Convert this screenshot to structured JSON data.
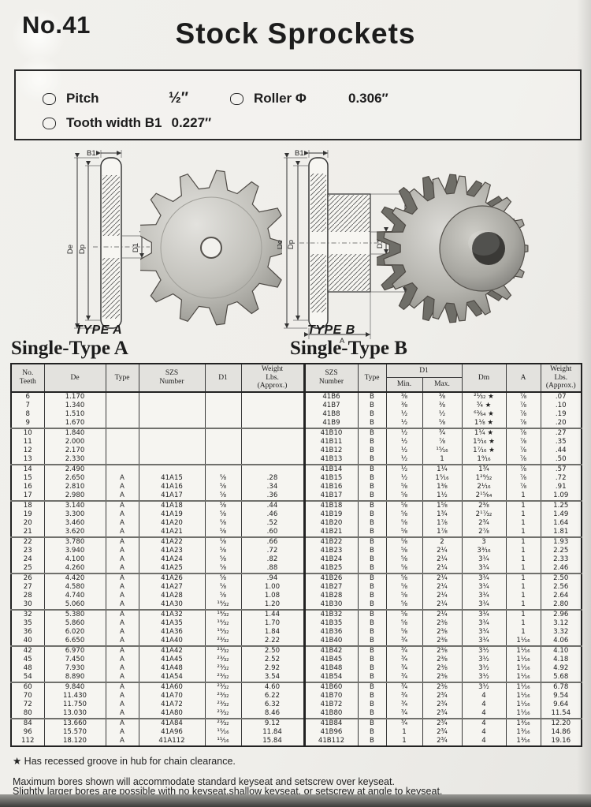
{
  "page": {
    "number_label": "No.41",
    "title": "Stock Sprockets"
  },
  "specs": {
    "pitch_label": "Pitch",
    "pitch_value": "½″",
    "roller_label": "Roller Φ",
    "roller_value": "0.306″",
    "tooth_label": "Tooth width B1",
    "tooth_value": "0.227″"
  },
  "drawings": {
    "type_a_caption": "TYPE A",
    "type_b_caption": "TYPE B",
    "single_a_title": "Single-Type A",
    "single_b_title": "Single-Type B",
    "labels": {
      "b1": "B1",
      "de": "De",
      "dp": "Dp",
      "d1": "D1",
      "dm": "Dm",
      "a": "A"
    }
  },
  "table": {
    "headers": {
      "no_teeth": "No.\nTeeth",
      "de": "De",
      "type": "Type",
      "szs_number": "SZS\nNumber",
      "d1": "D1",
      "weight": "Weight\nLbs.\n(Approx.)",
      "szs_number_b": "SZS\nNumber",
      "type_b": "Type",
      "d1_b": "D1",
      "min": "Min.",
      "max": "Max.",
      "dm": "Dm",
      "a": "A",
      "weight_b": "Weight\nLbs.\n(Approx.)"
    },
    "rows": [
      {
        "c": [
          "6",
          "1.170",
          "",
          "",
          "",
          "",
          "41B6",
          "B",
          "⅜",
          "⅜",
          "²¹⁄₃₂ ★",
          "⅞",
          ".07"
        ],
        "sep": false
      },
      {
        "c": [
          "7",
          "1.340",
          "",
          "",
          "",
          "",
          "41B7",
          "B",
          "⅜",
          "⅜",
          "¾ ★",
          "⅞",
          ".10"
        ],
        "sep": false
      },
      {
        "c": [
          "8",
          "1.510",
          "",
          "",
          "",
          "",
          "41B8",
          "B",
          "½",
          "½",
          "⁶³⁄₆₄ ★",
          "⅞",
          ".19"
        ],
        "sep": false
      },
      {
        "c": [
          "9",
          "1.670",
          "",
          "",
          "",
          "",
          "41B9",
          "B",
          "½",
          "⅝",
          "1⅛ ★",
          "⅞",
          ".20"
        ],
        "sep": false
      },
      {
        "c": [
          "10",
          "1.840",
          "",
          "",
          "",
          "",
          "41B10",
          "B",
          "½",
          "¾",
          "1¼ ★",
          "⅞",
          ".27"
        ],
        "sep": true
      },
      {
        "c": [
          "11",
          "2.000",
          "",
          "",
          "",
          "",
          "41B11",
          "B",
          "½",
          "⅞",
          "1⁵⁄₁₆ ★",
          "⅞",
          ".35"
        ],
        "sep": false
      },
      {
        "c": [
          "12",
          "2.170",
          "",
          "",
          "",
          "",
          "41B12",
          "B",
          "½",
          "¹⁵⁄₁₆",
          "1⁷⁄₁₆ ★",
          "⅞",
          ".44"
        ],
        "sep": false
      },
      {
        "c": [
          "13",
          "2.330",
          "",
          "",
          "",
          "",
          "41B13",
          "B",
          "½",
          "1",
          "1⁹⁄₁₆",
          "⅞",
          ".50"
        ],
        "sep": false
      },
      {
        "c": [
          "14",
          "2.490",
          "",
          "",
          "",
          "",
          "41B14",
          "B",
          "½",
          "1¼",
          "1¾",
          "⅞",
          ".57"
        ],
        "sep": true
      },
      {
        "c": [
          "15",
          "2.650",
          "A",
          "41A15",
          "⅝",
          ".28",
          "41B15",
          "B",
          "½",
          "1⁵⁄₁₆",
          "1²⁹⁄₃₂",
          "⅞",
          ".72"
        ],
        "sep": false
      },
      {
        "c": [
          "16",
          "2.810",
          "A",
          "41A16",
          "⅝",
          ".34",
          "41B16",
          "B",
          "⅝",
          "1⅜",
          "2¹⁄₁₆",
          "⅞",
          ".91"
        ],
        "sep": false
      },
      {
        "c": [
          "17",
          "2.980",
          "A",
          "41A17",
          "⅝",
          ".36",
          "41B17",
          "B",
          "⅝",
          "1½",
          "2¹⁵⁄₆₄",
          "1",
          "1.09"
        ],
        "sep": false
      },
      {
        "c": [
          "18",
          "3.140",
          "A",
          "41A18",
          "⅝",
          ".44",
          "41B18",
          "B",
          "⅝",
          "1⅝",
          "2⅜",
          "1",
          "1.25"
        ],
        "sep": true
      },
      {
        "c": [
          "19",
          "3.300",
          "A",
          "41A19",
          "⅝",
          ".46",
          "41B19",
          "B",
          "⅝",
          "1¾",
          "2¹⁷⁄₃₂",
          "1",
          "1.49"
        ],
        "sep": false
      },
      {
        "c": [
          "20",
          "3.460",
          "A",
          "41A20",
          "⅝",
          ".52",
          "41B20",
          "B",
          "⅝",
          "1⅞",
          "2¾",
          "1",
          "1.64"
        ],
        "sep": false
      },
      {
        "c": [
          "21",
          "3.620",
          "A",
          "41A21",
          "⅝",
          ".60",
          "41B21",
          "B",
          "⅝",
          "1⅞",
          "2⅞",
          "1",
          "1.81"
        ],
        "sep": false
      },
      {
        "c": [
          "22",
          "3.780",
          "A",
          "41A22",
          "⅝",
          ".66",
          "41B22",
          "B",
          "⅝",
          "2",
          "3",
          "1",
          "1.93"
        ],
        "sep": true
      },
      {
        "c": [
          "23",
          "3.940",
          "A",
          "41A23",
          "⅝",
          ".72",
          "41B23",
          "B",
          "⅝",
          "2¼",
          "3³⁄₁₆",
          "1",
          "2.25"
        ],
        "sep": false
      },
      {
        "c": [
          "24",
          "4.100",
          "A",
          "41A24",
          "⅝",
          ".82",
          "41B24",
          "B",
          "⅝",
          "2¼",
          "3¼",
          "1",
          "2.33"
        ],
        "sep": false
      },
      {
        "c": [
          "25",
          "4.260",
          "A",
          "41A25",
          "⅝",
          ".88",
          "41B25",
          "B",
          "⅝",
          "2¼",
          "3¼",
          "1",
          "2.46"
        ],
        "sep": false
      },
      {
        "c": [
          "26",
          "4.420",
          "A",
          "41A26",
          "⅝",
          ".94",
          "41B26",
          "B",
          "⅝",
          "2¼",
          "3¼",
          "1",
          "2.50"
        ],
        "sep": true
      },
      {
        "c": [
          "27",
          "4.580",
          "A",
          "41A27",
          "⅝",
          "1.00",
          "41B27",
          "B",
          "⅝",
          "2¼",
          "3¼",
          "1",
          "2.56"
        ],
        "sep": false
      },
      {
        "c": [
          "28",
          "4.740",
          "A",
          "41A28",
          "⅝",
          "1.08",
          "41B28",
          "B",
          "⅝",
          "2¼",
          "3¼",
          "1",
          "2.64"
        ],
        "sep": false
      },
      {
        "c": [
          "30",
          "5.060",
          "A",
          "41A30",
          "¹⁹⁄₃₂",
          "1.20",
          "41B30",
          "B",
          "⅝",
          "2¼",
          "3¼",
          "1",
          "2.80"
        ],
        "sep": false
      },
      {
        "c": [
          "32",
          "5.380",
          "A",
          "41A32",
          "¹⁹⁄₃₂",
          "1.44",
          "41B32",
          "B",
          "⅝",
          "2¼",
          "3¼",
          "1",
          "2.96"
        ],
        "sep": true
      },
      {
        "c": [
          "35",
          "5.860",
          "A",
          "41A35",
          "¹⁹⁄₃₂",
          "1.70",
          "41B35",
          "B",
          "⅝",
          "2⅜",
          "3¼",
          "1",
          "3.12"
        ],
        "sep": false
      },
      {
        "c": [
          "36",
          "6.020",
          "A",
          "41A36",
          "¹⁹⁄₃₂",
          "1.84",
          "41B36",
          "B",
          "⅝",
          "2⅜",
          "3¼",
          "1",
          "3.32"
        ],
        "sep": false
      },
      {
        "c": [
          "40",
          "6.650",
          "A",
          "41A40",
          "²³⁄₃₂",
          "2.22",
          "41B40",
          "B",
          "¾",
          "2⅜",
          "3¼",
          "1¹⁄₁₆",
          "4.06"
        ],
        "sep": false
      },
      {
        "c": [
          "42",
          "6.970",
          "A",
          "41A42",
          "²³⁄₃₂",
          "2.50",
          "41B42",
          "B",
          "¾",
          "2⅜",
          "3½",
          "1¹⁄₁₆",
          "4.10"
        ],
        "sep": true
      },
      {
        "c": [
          "45",
          "7.450",
          "A",
          "41A45",
          "²³⁄₃₂",
          "2.52",
          "41B45",
          "B",
          "¾",
          "2⅜",
          "3½",
          "1¹⁄₁₆",
          "4.18"
        ],
        "sep": false
      },
      {
        "c": [
          "48",
          "7.930",
          "A",
          "41A48",
          "²³⁄₃₂",
          "2.92",
          "41B48",
          "B",
          "¾",
          "2⅜",
          "3½",
          "1¹⁄₁₆",
          "4.92"
        ],
        "sep": false
      },
      {
        "c": [
          "54",
          "8.890",
          "A",
          "41A54",
          "²³⁄₃₂",
          "3.54",
          "41B54",
          "B",
          "¾",
          "2⅜",
          "3½",
          "1¹⁄₁₆",
          "5.68"
        ],
        "sep": false
      },
      {
        "c": [
          "60",
          "9.840",
          "A",
          "41A60",
          "²³⁄₃₂",
          "4.60",
          "41B60",
          "B",
          "¾",
          "2⅜",
          "3½",
          "1¹⁄₁₆",
          "6.78"
        ],
        "sep": true
      },
      {
        "c": [
          "70",
          "11.430",
          "A",
          "41A70",
          "²³⁄₃₂",
          "6.22",
          "41B70",
          "B",
          "¾",
          "2¾",
          "4",
          "1¹⁄₁₆",
          "9.54"
        ],
        "sep": false
      },
      {
        "c": [
          "72",
          "11.750",
          "A",
          "41A72",
          "²³⁄₃₂",
          "6.32",
          "41B72",
          "B",
          "¾",
          "2¾",
          "4",
          "1¹⁄₁₆",
          "9.64"
        ],
        "sep": false
      },
      {
        "c": [
          "80",
          "13.030",
          "A",
          "41A80",
          "²³⁄₃₂",
          "8.46",
          "41B80",
          "B",
          "¾",
          "2¾",
          "4",
          "1¹⁄₁₆",
          "11.54"
        ],
        "sep": false
      },
      {
        "c": [
          "84",
          "13.660",
          "A",
          "41A84",
          "²³⁄₃₂",
          "9.12",
          "41B84",
          "B",
          "¾",
          "2¾",
          "4",
          "1³⁄₁₆",
          "12.20"
        ],
        "sep": true
      },
      {
        "c": [
          "96",
          "15.570",
          "A",
          "41A96",
          "¹⁵⁄₁₆",
          "11.84",
          "41B96",
          "B",
          "1",
          "2¾",
          "4",
          "1³⁄₁₆",
          "14.86"
        ],
        "sep": false
      },
      {
        "c": [
          "112",
          "18.120",
          "A",
          "41A112",
          "¹⁵⁄₁₆",
          "15.84",
          "41B112",
          "B",
          "1",
          "2¾",
          "4",
          "1³⁄₁₆",
          "19.16"
        ],
        "sep": false
      }
    ]
  },
  "footnotes": {
    "star_note": "★ Has recessed groove in hub for chain clearance.",
    "note_line1": "Maximum bores shown will accommodate standard keyseat and setscrew over keyseat.",
    "note_line2": "Slightly larger bores are possible with no keyseat,shallow keyseat, or setscrew at angle to keyseat."
  }
}
